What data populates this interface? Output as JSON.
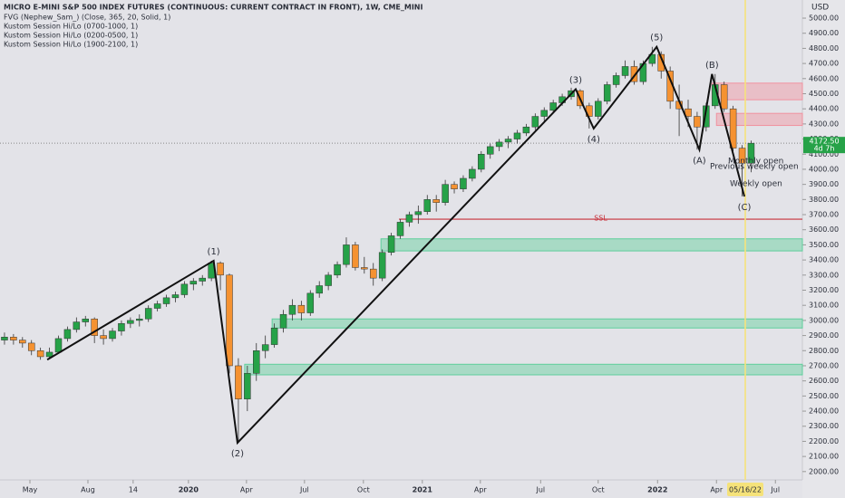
{
  "header": {
    "title": "MICRO E-MINI S&P 500 INDEX FUTURES (CONTINUOUS: CURRENT CONTRACT IN FRONT), 1W, CME_MINI",
    "indicators": [
      "FVG (Nephew_Sam_) (Close, 365, 20, Solid, 1)",
      "Kustom Session Hi/Lo (0700-1000, 1)",
      "Kustom Session Hi/Lo (0200-0500, 1)",
      "Kustom Session Hi/Lo (1900-2100, 1)"
    ]
  },
  "chart_data": {
    "type": "candlestick",
    "currency": "USD",
    "up_color": "#26a248",
    "down_color": "#f59231",
    "xlim": [
      0,
      178.4
    ],
    "ylim": [
      1945,
      5120
    ],
    "xticks": [
      {
        "value": 6.65,
        "label": "May"
      },
      {
        "value": 19.55,
        "label": "Aug"
      },
      {
        "value": 29.6,
        "label": "14"
      },
      {
        "value": 41.9,
        "label": "2020"
      },
      {
        "value": 54.8,
        "label": "Apr"
      },
      {
        "value": 67.7,
        "label": "Jul"
      },
      {
        "value": 80.8,
        "label": "Oct"
      },
      {
        "value": 93.9,
        "label": "2021"
      },
      {
        "value": 106.8,
        "label": "Apr"
      },
      {
        "value": 120.2,
        "label": "Jul"
      },
      {
        "value": 133,
        "label": "Oct"
      },
      {
        "value": 146.2,
        "label": "2022"
      },
      {
        "value": 159.3,
        "label": "Apr"
      },
      {
        "value": 172.4,
        "label": "Jul"
      }
    ],
    "yticks": [
      {
        "value": 2000,
        "label": "2000.00"
      },
      {
        "value": 2100,
        "label": "2100.00"
      },
      {
        "value": 2200,
        "label": "2200.00"
      },
      {
        "value": 2300,
        "label": "2300.00"
      },
      {
        "value": 2400,
        "label": "2400.00"
      },
      {
        "value": 2500,
        "label": "2500.00"
      },
      {
        "value": 2600,
        "label": "2600.00"
      },
      {
        "value": 2700,
        "label": "2700.00"
      },
      {
        "value": 2800,
        "label": "2800.00"
      },
      {
        "value": 2900,
        "label": "2900.00"
      },
      {
        "value": 3000,
        "label": "3000.00"
      },
      {
        "value": 3100,
        "label": "3100.00"
      },
      {
        "value": 3200,
        "label": "3200.00"
      },
      {
        "value": 3300,
        "label": "3300.00"
      },
      {
        "value": 3400,
        "label": "3400.00"
      },
      {
        "value": 3500,
        "label": "3500.00"
      },
      {
        "value": 3600,
        "label": "3600.00"
      },
      {
        "value": 3700,
        "label": "3700.00"
      },
      {
        "value": 3800,
        "label": "3800.00"
      },
      {
        "value": 3900,
        "label": "3900.00"
      },
      {
        "value": 4000,
        "label": "4000.00"
      },
      {
        "value": 4100,
        "label": "4100.00"
      },
      {
        "value": 4200,
        "label": "4200.00"
      },
      {
        "value": 4300,
        "label": "4300.00"
      },
      {
        "value": 4400,
        "label": "4400.00"
      },
      {
        "value": 4500,
        "label": "4500.00"
      },
      {
        "value": 4600,
        "label": "4600.00"
      },
      {
        "value": 4700,
        "label": "4700.00"
      },
      {
        "value": 4800,
        "label": "4800.00"
      },
      {
        "value": 4900,
        "label": "4900.00"
      },
      {
        "value": 5000,
        "label": "5000.00"
      }
    ],
    "x": [
      1,
      3,
      5,
      7,
      9,
      11,
      13,
      15,
      17,
      19,
      21,
      23,
      25,
      27,
      29,
      31,
      33,
      35,
      37,
      39,
      41,
      43,
      45,
      47,
      49,
      51,
      53,
      55,
      57,
      59,
      61,
      63,
      65,
      67,
      69,
      71,
      73,
      75,
      77,
      79,
      81,
      83,
      85,
      87,
      89,
      91,
      93,
      95,
      97,
      99,
      101,
      103,
      105,
      107,
      109,
      111,
      113,
      115,
      117,
      119,
      121,
      123,
      125,
      127,
      129,
      131,
      133,
      135,
      137,
      139,
      141,
      143,
      145,
      147,
      149,
      151,
      153,
      155,
      157,
      159,
      161,
      163,
      165,
      167
    ],
    "candles": [
      [
        2870,
        2920,
        2840,
        2890
      ],
      [
        2890,
        2910,
        2840,
        2870
      ],
      [
        2870,
        2890,
        2820,
        2850
      ],
      [
        2850,
        2870,
        2770,
        2800
      ],
      [
        2800,
        2820,
        2740,
        2760
      ],
      [
        2760,
        2820,
        2750,
        2790
      ],
      [
        2790,
        2900,
        2780,
        2880
      ],
      [
        2880,
        2960,
        2860,
        2940
      ],
      [
        2940,
        3020,
        2920,
        2990
      ],
      [
        2990,
        3030,
        2960,
        3010
      ],
      [
        3010,
        3020,
        2850,
        2900
      ],
      [
        2900,
        2940,
        2840,
        2880
      ],
      [
        2880,
        2950,
        2860,
        2930
      ],
      [
        2930,
        3000,
        2900,
        2980
      ],
      [
        2980,
        3020,
        2950,
        3000
      ],
      [
        3000,
        3040,
        2960,
        3010
      ],
      [
        3010,
        3100,
        2990,
        3080
      ],
      [
        3080,
        3130,
        3060,
        3110
      ],
      [
        3110,
        3170,
        3090,
        3150
      ],
      [
        3150,
        3190,
        3120,
        3170
      ],
      [
        3170,
        3260,
        3150,
        3240
      ],
      [
        3240,
        3280,
        3200,
        3260
      ],
      [
        3260,
        3300,
        3230,
        3280
      ],
      [
        3280,
        3395,
        3260,
        3380
      ],
      [
        3380,
        3390,
        3200,
        3300
      ],
      [
        3300,
        3310,
        2650,
        2700
      ],
      [
        2700,
        2750,
        2190,
        2480
      ],
      [
        2480,
        2700,
        2400,
        2650
      ],
      [
        2650,
        2850,
        2600,
        2800
      ],
      [
        2800,
        2900,
        2750,
        2840
      ],
      [
        2840,
        2980,
        2820,
        2950
      ],
      [
        2950,
        3070,
        2920,
        3040
      ],
      [
        3040,
        3140,
        3000,
        3100
      ],
      [
        3100,
        3130,
        3000,
        3050
      ],
      [
        3050,
        3200,
        3030,
        3180
      ],
      [
        3180,
        3260,
        3150,
        3230
      ],
      [
        3230,
        3320,
        3200,
        3300
      ],
      [
        3300,
        3390,
        3280,
        3370
      ],
      [
        3370,
        3550,
        3350,
        3500
      ],
      [
        3500,
        3520,
        3330,
        3350
      ],
      [
        3350,
        3420,
        3310,
        3340
      ],
      [
        3340,
        3380,
        3230,
        3280
      ],
      [
        3280,
        3470,
        3260,
        3450
      ],
      [
        3450,
        3580,
        3430,
        3560
      ],
      [
        3560,
        3670,
        3540,
        3650
      ],
      [
        3650,
        3720,
        3620,
        3700
      ],
      [
        3700,
        3760,
        3640,
        3720
      ],
      [
        3720,
        3830,
        3700,
        3800
      ],
      [
        3800,
        3830,
        3720,
        3780
      ],
      [
        3780,
        3930,
        3760,
        3900
      ],
      [
        3900,
        3920,
        3840,
        3870
      ],
      [
        3870,
        3960,
        3850,
        3940
      ],
      [
        3940,
        4020,
        3920,
        4000
      ],
      [
        4000,
        4120,
        3980,
        4100
      ],
      [
        4100,
        4170,
        4070,
        4150
      ],
      [
        4150,
        4200,
        4120,
        4180
      ],
      [
        4180,
        4220,
        4140,
        4200
      ],
      [
        4200,
        4260,
        4170,
        4240
      ],
      [
        4240,
        4300,
        4220,
        4280
      ],
      [
        4280,
        4370,
        4260,
        4350
      ],
      [
        4350,
        4410,
        4320,
        4390
      ],
      [
        4390,
        4460,
        4370,
        4440
      ],
      [
        4440,
        4500,
        4420,
        4480
      ],
      [
        4480,
        4540,
        4460,
        4520
      ],
      [
        4520,
        4530,
        4400,
        4420
      ],
      [
        4420,
        4440,
        4270,
        4350
      ],
      [
        4350,
        4470,
        4330,
        4450
      ],
      [
        4450,
        4580,
        4430,
        4560
      ],
      [
        4560,
        4640,
        4540,
        4620
      ],
      [
        4620,
        4720,
        4600,
        4680
      ],
      [
        4680,
        4720,
        4560,
        4580
      ],
      [
        4580,
        4720,
        4560,
        4700
      ],
      [
        4700,
        4810,
        4680,
        4760
      ],
      [
        4760,
        4780,
        4600,
        4650
      ],
      [
        4650,
        4680,
        4400,
        4450
      ],
      [
        4450,
        4560,
        4220,
        4400
      ],
      [
        4400,
        4460,
        4280,
        4350
      ],
      [
        4350,
        4380,
        4130,
        4280
      ],
      [
        4280,
        4440,
        4250,
        4420
      ],
      [
        4420,
        4630,
        4400,
        4560
      ],
      [
        4560,
        4580,
        4380,
        4400
      ],
      [
        4400,
        4420,
        4120,
        4140
      ],
      [
        4140,
        4160,
        3820,
        4040
      ],
      [
        4040,
        4190,
        3980,
        4172.5
      ]
    ],
    "last_price": {
      "value": 4172.5,
      "label": "4172.50",
      "countdown": "4d 7h",
      "color": "#26a248"
    },
    "zigzag": {
      "x": [
        10.5,
        47.5,
        52.8,
        128,
        132,
        146,
        155.5,
        158.3,
        165.5
      ],
      "y": [
        2740,
        3395,
        2190,
        4530,
        4270,
        4810,
        4130,
        4630,
        3820
      ],
      "labels": [
        "(1)",
        "(2)",
        "(3)",
        "(4)",
        "(5)",
        "(A)",
        "(B)",
        "(C)"
      ]
    },
    "zones": [
      {
        "x0": 84.7,
        "top": 3540,
        "bottom": 3460,
        "color": "#5fcf9c"
      },
      {
        "x0": 60.5,
        "top": 3010,
        "bottom": 2950,
        "color": "#5fcf9c"
      },
      {
        "x0": 54.4,
        "top": 2710,
        "bottom": 2640,
        "color": "#5fcf9c"
      },
      {
        "x0": 158.3,
        "top": 4570,
        "bottom": 4460,
        "color": "#f0929f"
      },
      {
        "x0": 159.3,
        "top": 4370,
        "bottom": 4290,
        "color": "#f0929f"
      }
    ],
    "levels": [
      {
        "x0": 88.7,
        "value": 3670,
        "label": "SSL",
        "color": "#c8303a"
      }
    ],
    "session_labels": [
      "Monthly open",
      "Previous weekly open",
      "Weekly open"
    ],
    "cursor": {
      "x": 165.7,
      "label": "05/16/22"
    }
  }
}
